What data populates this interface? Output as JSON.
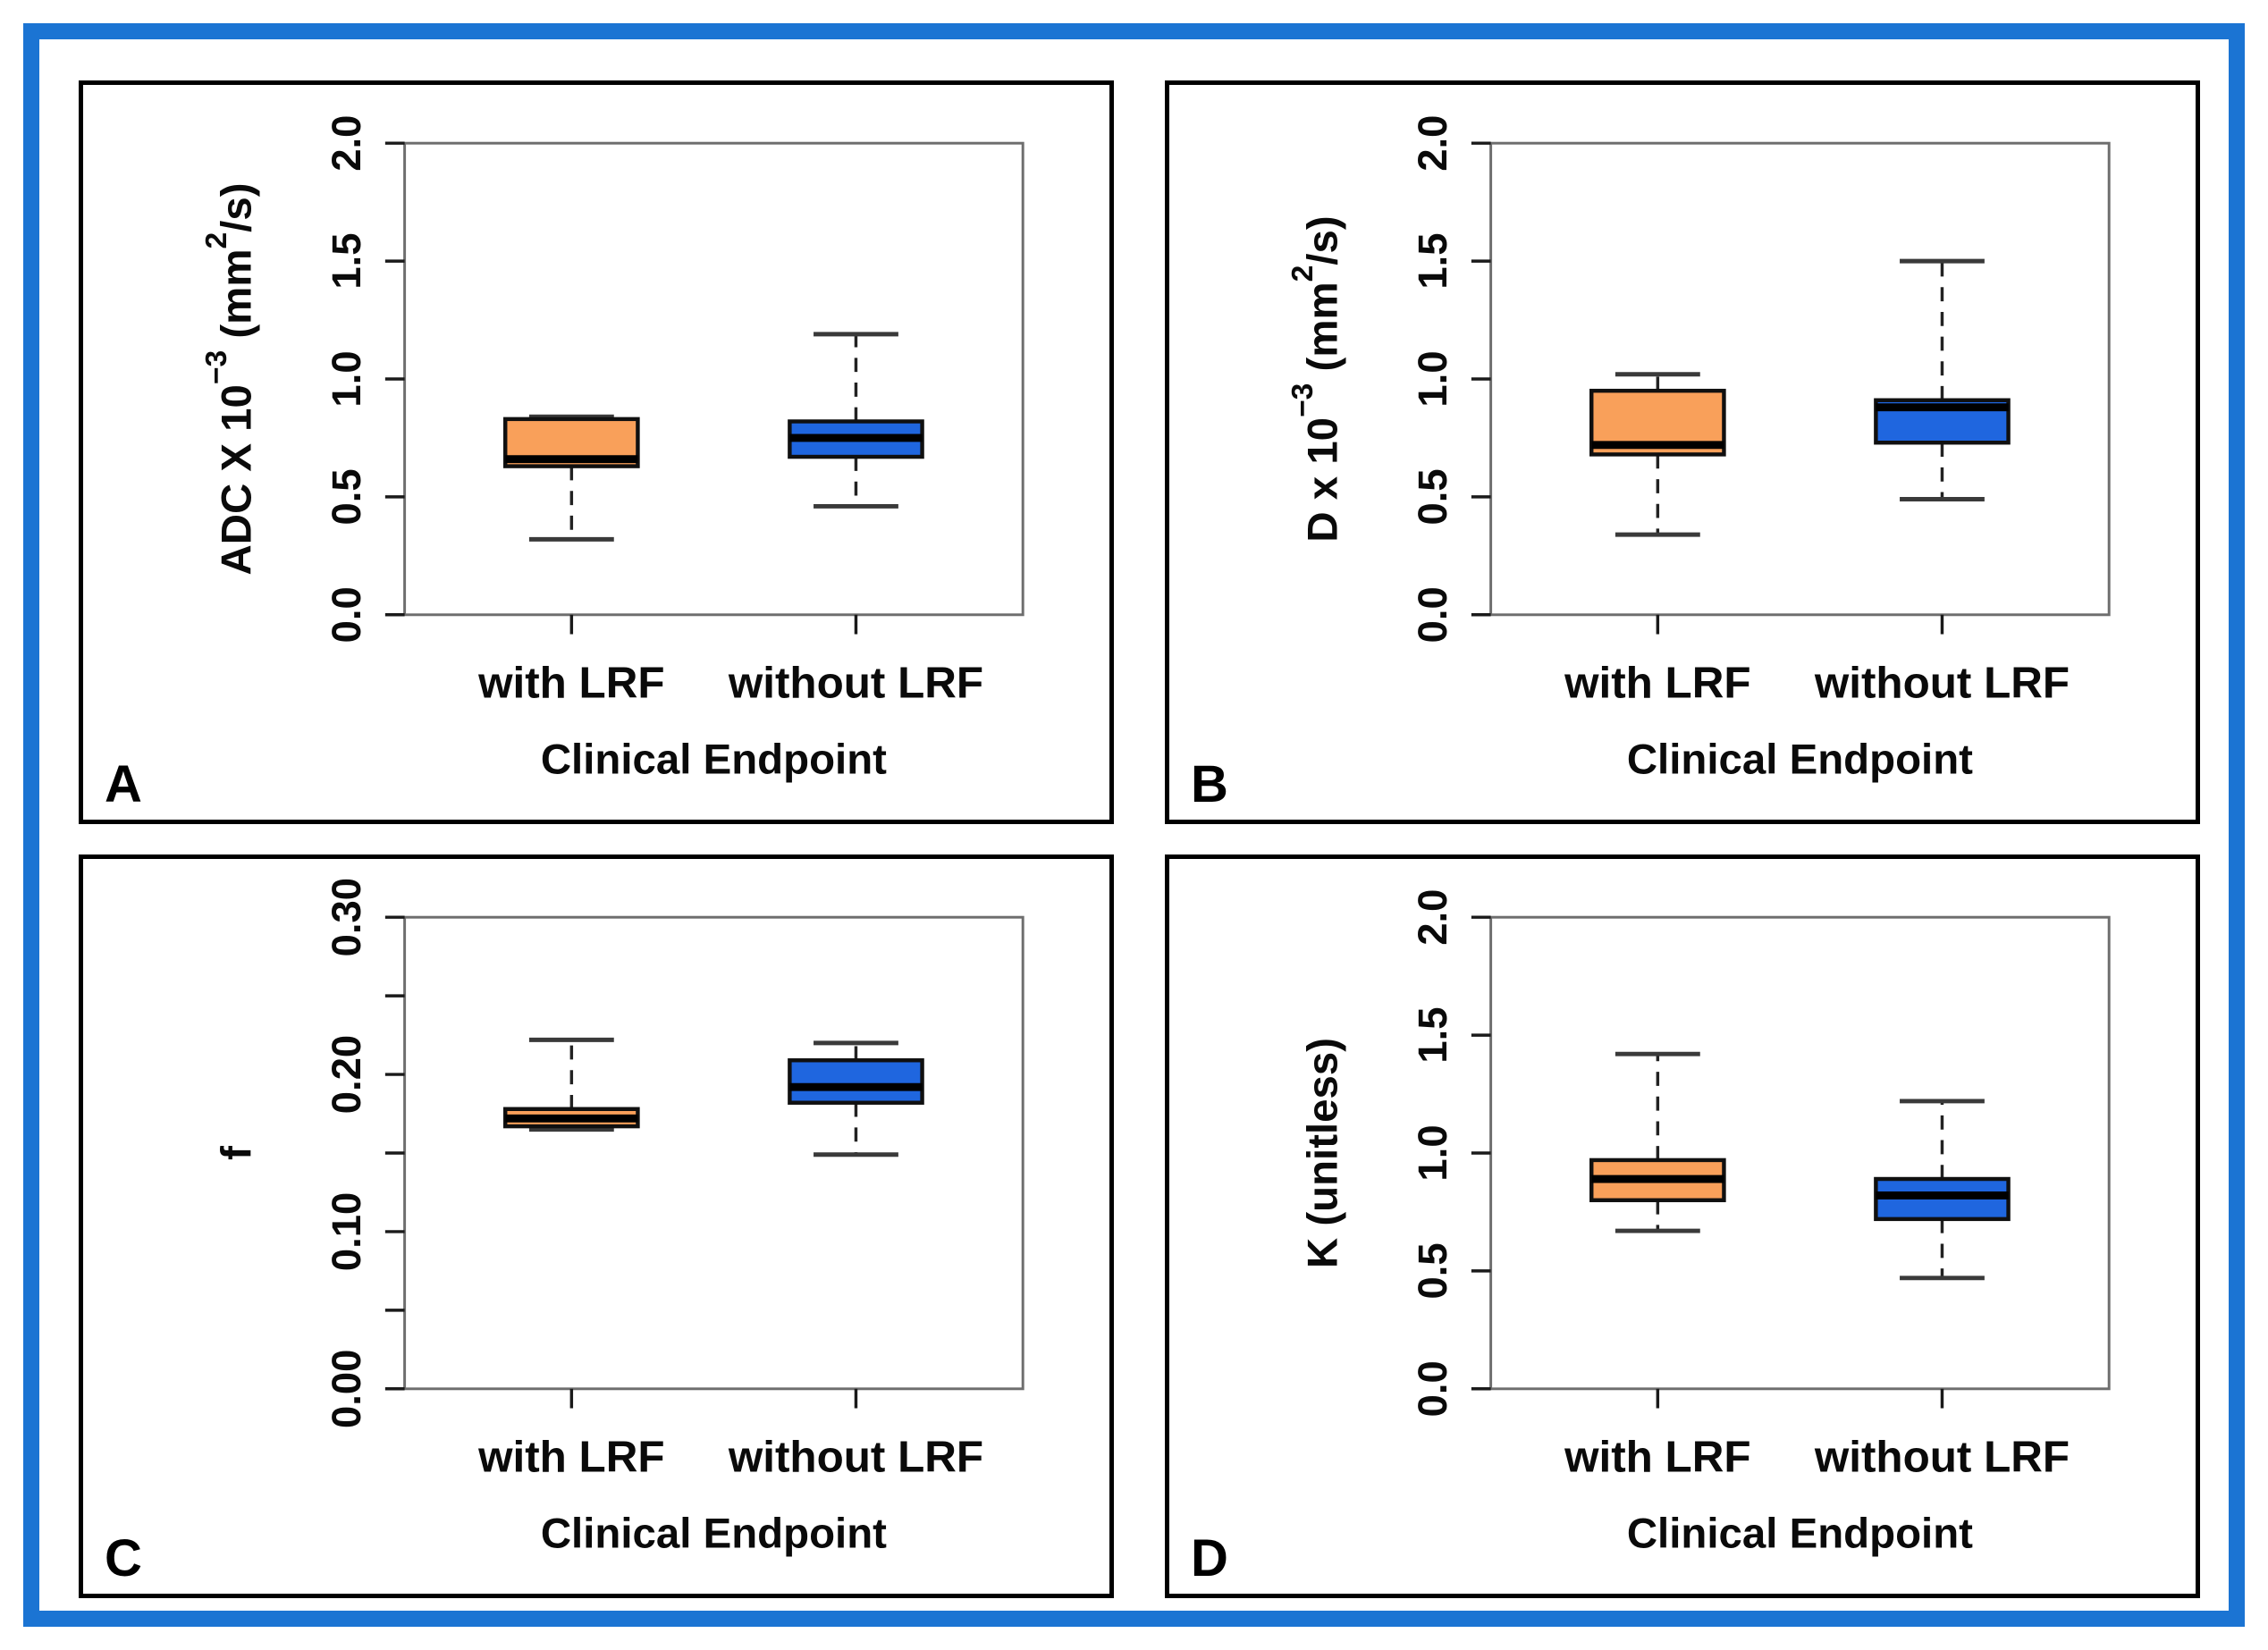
{
  "figure": {
    "outer_frame_color": "#1B74D3",
    "panel_border_color": "#000000",
    "background_color": "#FFFFFF",
    "plot_frame_color": "#6E6E6E",
    "tick_color": "#1A1A1A",
    "whisker_color": "#222222",
    "cap_color": "#3A3A3A",
    "box_border_color": "#101010",
    "median_color": "#000000",
    "text_color": "#0A0A0A"
  },
  "chart_data": [
    {
      "panel_label": "A",
      "type": "boxplot",
      "xlabel": "Clinical Endpoint",
      "ylabel_text": "ADC X 10−3 (mm2/s)",
      "ylabel_segments": [
        {
          "t": "ADC X 10"
        },
        {
          "t": "−3",
          "sup": true
        },
        {
          "t": " (mm"
        },
        {
          "t": "2",
          "sup": true
        },
        {
          "t": "/s)"
        }
      ],
      "ylim": [
        0.0,
        2.0
      ],
      "yticks": [
        0.0,
        0.5,
        1.0,
        1.5,
        2.0
      ],
      "ytick_labels": [
        "0.0",
        "0.5",
        "1.0",
        "1.5",
        "2.0"
      ],
      "categories": [
        "with LRF",
        "without LRF"
      ],
      "series": [
        {
          "name": "with LRF",
          "fill": "#F9A05A",
          "whisker_low": 0.32,
          "q1": 0.63,
          "median": 0.66,
          "q3": 0.83,
          "whisker_high": 0.84
        },
        {
          "name": "without LRF",
          "fill": "#1F66DF",
          "whisker_low": 0.46,
          "q1": 0.67,
          "median": 0.75,
          "q3": 0.82,
          "whisker_high": 1.19
        }
      ]
    },
    {
      "panel_label": "B",
      "type": "boxplot",
      "xlabel": "Clinical Endpoint",
      "ylabel_text": "D x 10−3 (mm2/s)",
      "ylabel_segments": [
        {
          "t": "D x 10"
        },
        {
          "t": "−3",
          "sup": true
        },
        {
          "t": " (mm"
        },
        {
          "t": "2",
          "sup": true
        },
        {
          "t": "/s)"
        }
      ],
      "ylim": [
        0.0,
        2.0
      ],
      "yticks": [
        0.0,
        0.5,
        1.0,
        1.5,
        2.0
      ],
      "ytick_labels": [
        "0.0",
        "0.5",
        "1.0",
        "1.5",
        "2.0"
      ],
      "categories": [
        "with LRF",
        "without LRF"
      ],
      "series": [
        {
          "name": "with LRF",
          "fill": "#F9A05A",
          "whisker_low": 0.34,
          "q1": 0.68,
          "median": 0.72,
          "q3": 0.95,
          "whisker_high": 1.02
        },
        {
          "name": "without LRF",
          "fill": "#1F66DF",
          "whisker_low": 0.49,
          "q1": 0.73,
          "median": 0.88,
          "q3": 0.91,
          "whisker_high": 1.5
        }
      ]
    },
    {
      "panel_label": "C",
      "type": "boxplot",
      "xlabel": "Clinical Endpoint",
      "ylabel_text": "f",
      "ylabel_segments": [
        {
          "t": "f"
        }
      ],
      "ylim": [
        0.0,
        0.3
      ],
      "yticks": [
        0.0,
        0.05,
        0.1,
        0.15,
        0.2,
        0.25,
        0.3
      ],
      "ytick_labels": [
        "0.00",
        "",
        "0.10",
        "",
        "0.20",
        "",
        "0.30"
      ],
      "categories": [
        "with LRF",
        "without LRF"
      ],
      "series": [
        {
          "name": "with LRF",
          "fill": "#F9A05A",
          "whisker_low": 0.165,
          "q1": 0.167,
          "median": 0.172,
          "q3": 0.178,
          "whisker_high": 0.222
        },
        {
          "name": "without LRF",
          "fill": "#1F66DF",
          "whisker_low": 0.149,
          "q1": 0.182,
          "median": 0.192,
          "q3": 0.209,
          "whisker_high": 0.22
        }
      ]
    },
    {
      "panel_label": "D",
      "type": "boxplot",
      "xlabel": "Clinical Endpoint",
      "ylabel_text": "K (unitless)",
      "ylabel_segments": [
        {
          "t": "K (unitless)"
        }
      ],
      "ylim": [
        0.0,
        2.0
      ],
      "yticks": [
        0.0,
        0.5,
        1.0,
        1.5,
        2.0
      ],
      "ytick_labels": [
        "0.0",
        "0.5",
        "1.0",
        "1.5",
        "2.0"
      ],
      "categories": [
        "with LRF",
        "without LRF"
      ],
      "series": [
        {
          "name": "with LRF",
          "fill": "#F9A05A",
          "whisker_low": 0.67,
          "q1": 0.8,
          "median": 0.89,
          "q3": 0.97,
          "whisker_high": 1.42
        },
        {
          "name": "without LRF",
          "fill": "#1F66DF",
          "whisker_low": 0.47,
          "q1": 0.72,
          "median": 0.82,
          "q3": 0.89,
          "whisker_high": 1.22
        }
      ]
    }
  ]
}
